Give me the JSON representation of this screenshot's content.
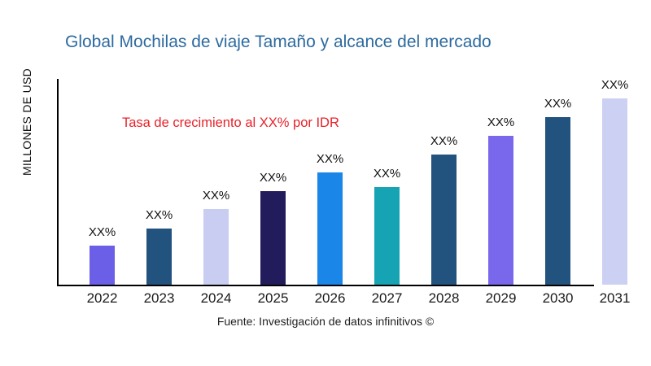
{
  "title": {
    "text": "Global Mochilas de viaje Tamaño y alcance del mercado",
    "color": "#2D6A9F"
  },
  "y_axis_label": "MILLONES DE USD",
  "annotation": {
    "text": "Tasa de crecimiento al XX% por IDR",
    "color": "#E8222A"
  },
  "footer": "Fuente: Investigación de datos infinitivos ©",
  "chart_data": {
    "type": "bar",
    "title": "Global Mochilas de viaje Tamaño y alcance del mercado",
    "xlabel": "",
    "ylabel": "MILLONES DE USD",
    "grid": false,
    "legend": false,
    "categories": [
      "2022",
      "2023",
      "2024",
      "2025",
      "2026",
      "2027",
      "2028",
      "2029",
      "2030",
      "2031"
    ],
    "value_labels": [
      "XX%",
      "XX%",
      "XX%",
      "XX%",
      "XX%",
      "XX%",
      "XX%",
      "XX%",
      "XX%",
      "XX%"
    ],
    "relative_heights_pct": [
      21.0,
      30.1,
      40.6,
      50.2,
      60.3,
      52.4,
      69.9,
      79.9,
      90.0,
      100.0
    ],
    "bar_colors": [
      "#6C5FE7",
      "#22527E",
      "#C9CDF2",
      "#231C5C",
      "#1986E8",
      "#16A4B4",
      "#22527E",
      "#7A68EC",
      "#22527E",
      "#CCD0F2"
    ]
  }
}
